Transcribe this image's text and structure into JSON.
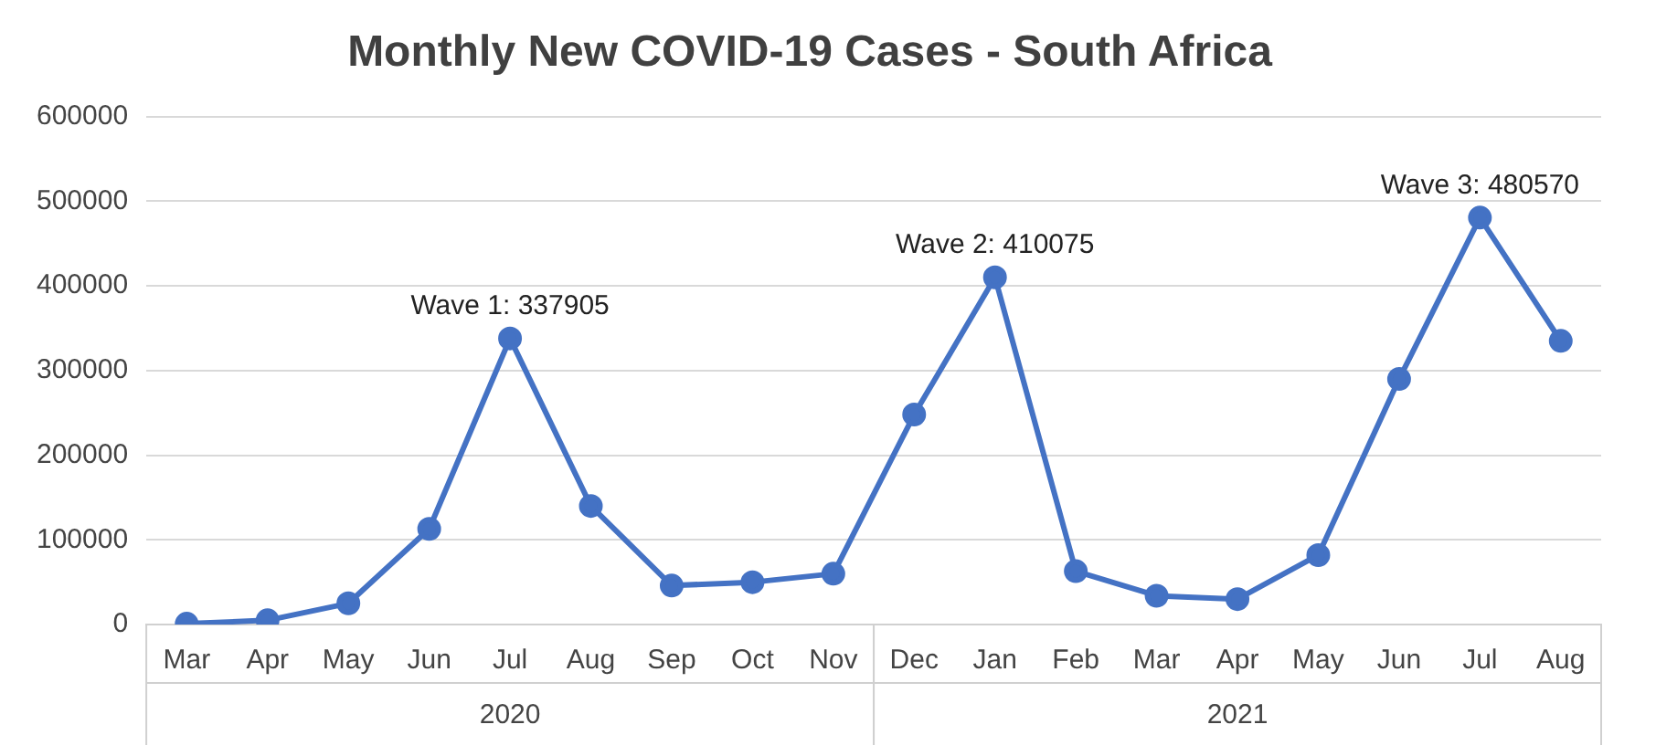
{
  "chart_data": {
    "type": "line",
    "title": "Monthly New COVID-19 Cases - South Africa",
    "categories": [
      "Mar",
      "Apr",
      "May",
      "Jun",
      "Jul",
      "Aug",
      "Sep",
      "Oct",
      "Nov",
      "Dec",
      "Jan",
      "Feb",
      "Mar",
      "Apr",
      "May",
      "Jun",
      "Jul",
      "Aug"
    ],
    "annotations": [
      "2020",
      "2021"
    ],
    "series": [
      {
        "color": "#4472c4",
        "values": [
          1000,
          5000,
          25000,
          113000,
          337905,
          140000,
          46000,
          50000,
          60000,
          248000,
          410075,
          63000,
          34000,
          30000,
          82000,
          290000,
          480570,
          335000
        ],
        "value_labels": [
          null,
          null,
          null,
          null,
          "Wave 1: 337905",
          null,
          null,
          null,
          null,
          null,
          "Wave 2: 410075",
          null,
          null,
          null,
          null,
          null,
          "Wave 3: 480570",
          null
        ]
      }
    ],
    "ylim": [
      0,
      600000
    ],
    "yticks": [
      0,
      100000,
      200000,
      300000,
      400000,
      500000,
      600000
    ],
    "grid": "y",
    "marker": "circle",
    "line_style": "solid",
    "legend": false
  }
}
